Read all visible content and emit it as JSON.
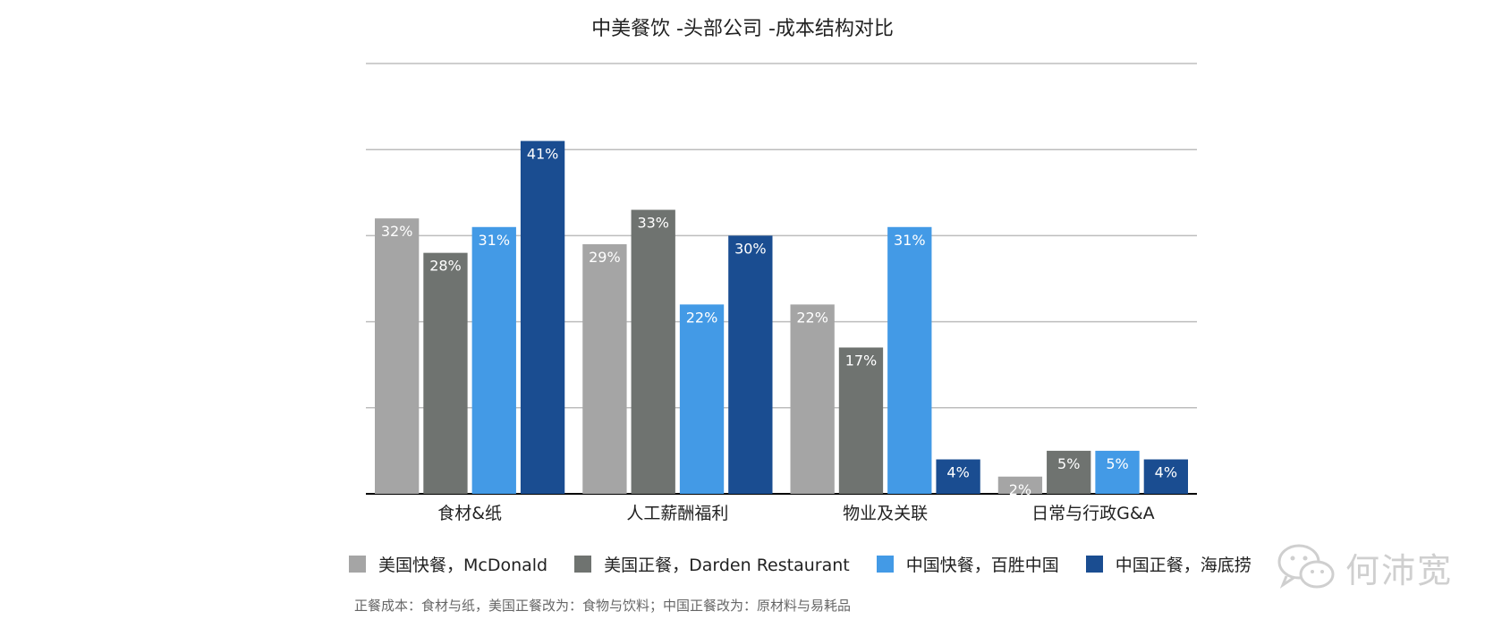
{
  "chart_data": {
    "type": "bar",
    "title": "中美餐饮 -头部公司 -成本结构对比",
    "categories": [
      "食材&纸",
      "人工薪酬福利",
      "物业及关联",
      "日常与行政G&A"
    ],
    "series": [
      {
        "name": "美国快餐，McDonald",
        "color": "#a5a5a5",
        "values": [
          32,
          29,
          22,
          2
        ]
      },
      {
        "name": "美国正餐，Darden Restaurant",
        "color": "#6f7370",
        "values": [
          28,
          33,
          17,
          5
        ]
      },
      {
        "name": "中国快餐，百胜中国",
        "color": "#439ae6",
        "values": [
          31,
          22,
          31,
          5
        ]
      },
      {
        "name": "中国正餐，海底捞",
        "color": "#1a4d91",
        "values": [
          41,
          30,
          4,
          4
        ]
      }
    ],
    "ylim": [
      0,
      50
    ],
    "grid": true,
    "value_format": "{v}%",
    "legend_position": "bottom"
  },
  "note": "正餐成本：食材与纸，美国正餐改为：食物与饮料；中国正餐改为：原材料与易耗品",
  "watermark": {
    "text": "何沛宽",
    "icon": "wechat-icon"
  }
}
